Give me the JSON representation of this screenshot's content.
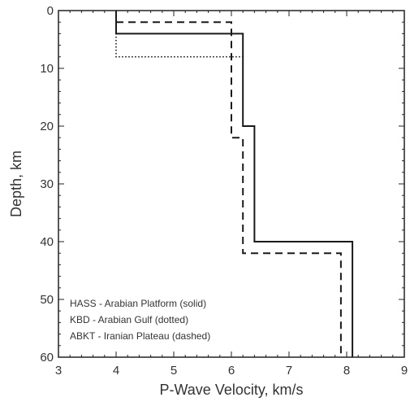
{
  "chart_data": {
    "type": "line",
    "xlabel": "P-Wave Velocity, km/s",
    "ylabel": "Depth, km",
    "xlim": [
      3,
      9
    ],
    "ylim": [
      0,
      60
    ],
    "y_inverted": true,
    "x_ticks": [
      3,
      4,
      5,
      6,
      7,
      8,
      9
    ],
    "y_ticks": [
      0,
      10,
      20,
      30,
      40,
      50,
      60
    ],
    "grid": false,
    "legend_placement": "bottom-left",
    "series": [
      {
        "name": "HASS - Arabian Platform (solid)",
        "style": "solid",
        "points": [
          [
            4.0,
            0
          ],
          [
            4.0,
            4
          ],
          [
            6.2,
            4
          ],
          [
            6.2,
            20
          ],
          [
            6.4,
            20
          ],
          [
            6.4,
            40
          ],
          [
            8.1,
            40
          ],
          [
            8.1,
            60
          ]
        ]
      },
      {
        "name": "KBD - Arabian Gulf (dotted)",
        "style": "dotted",
        "points": [
          [
            4.0,
            0
          ],
          [
            4.0,
            8
          ],
          [
            6.2,
            8
          ]
        ]
      },
      {
        "name": "ABKT - Iranian Plateau (dashed)",
        "style": "dashed",
        "points": [
          [
            4.0,
            2
          ],
          [
            6.0,
            2
          ],
          [
            6.0,
            22
          ],
          [
            6.2,
            22
          ],
          [
            6.2,
            42
          ],
          [
            7.9,
            42
          ],
          [
            7.9,
            60
          ]
        ]
      }
    ],
    "colors": {
      "line": "#1a1a1a",
      "axis": "#222222",
      "text": "#333333"
    }
  }
}
